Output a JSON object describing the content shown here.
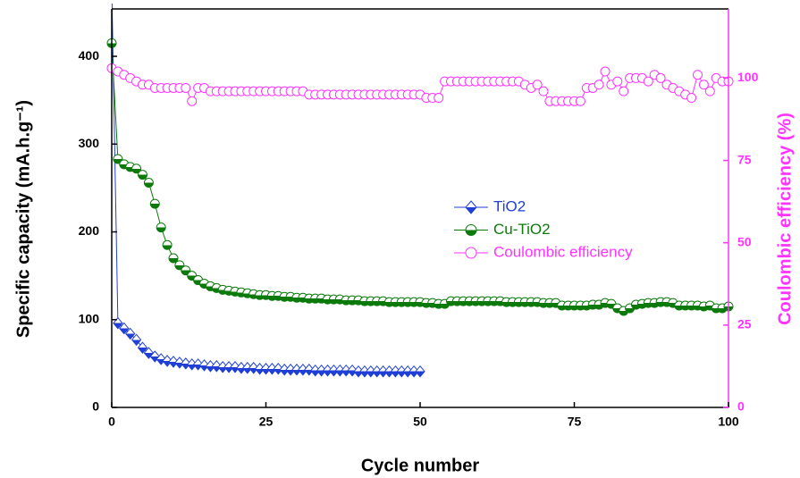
{
  "chart_data": {
    "type": "line",
    "x_label": "Cycle number",
    "y_label": "Specific capacity (mA.h.g⁻¹)",
    "y2_label": "Coulombic efficiency (%)",
    "xlim": [
      0,
      100
    ],
    "xticks": [
      0,
      25,
      50,
      75,
      100
    ],
    "ylim": [
      0,
      454
    ],
    "yticks": [
      0,
      100,
      200,
      300,
      400
    ],
    "y2lim": [
      0,
      121
    ],
    "y2ticks": [
      0,
      25,
      50,
      75,
      100
    ],
    "legend_position": "right",
    "x": [
      0,
      1,
      2,
      3,
      4,
      5,
      6,
      7,
      8,
      9,
      10,
      11,
      12,
      13,
      14,
      15,
      16,
      17,
      18,
      19,
      20,
      21,
      22,
      23,
      24,
      25,
      26,
      27,
      28,
      29,
      30,
      31,
      32,
      33,
      34,
      35,
      36,
      37,
      38,
      39,
      40,
      41,
      42,
      43,
      44,
      45,
      46,
      47,
      48,
      49,
      50,
      51,
      52,
      53,
      54,
      55,
      56,
      57,
      58,
      59,
      60,
      61,
      62,
      63,
      64,
      65,
      66,
      67,
      68,
      69,
      70,
      71,
      72,
      73,
      74,
      75,
      76,
      77,
      78,
      79,
      80,
      81,
      82,
      83,
      84,
      85,
      86,
      87,
      88,
      89,
      90,
      91,
      92,
      93,
      94,
      95,
      96,
      97,
      98,
      99,
      100
    ],
    "series": [
      {
        "name": "TiO2",
        "color": "#1f3fd6",
        "marker": "diamond",
        "axis": "y",
        "values": [
          480,
          96,
          90,
          84,
          77,
          68,
          62,
          58,
          55,
          53,
          52,
          51,
          50,
          49,
          49,
          48,
          47,
          47,
          46,
          46,
          46,
          45,
          45,
          45,
          44,
          44,
          44,
          44,
          43,
          43,
          43,
          43,
          43,
          42,
          42,
          42,
          42,
          42,
          42,
          42,
          41,
          41,
          41,
          41,
          41,
          41,
          41,
          41,
          41,
          41,
          41,
          null,
          null,
          null,
          null,
          null,
          null,
          null,
          null,
          null,
          null,
          null,
          null,
          null,
          null,
          null,
          null,
          null,
          null,
          null,
          null,
          null,
          null,
          null,
          null,
          null,
          null,
          null,
          null,
          null,
          null,
          null,
          null,
          null,
          null,
          null,
          null,
          null,
          null,
          null,
          null,
          null,
          null,
          null,
          null,
          null,
          null,
          null,
          null,
          null,
          null
        ]
      },
      {
        "name": "Cu-TiO2",
        "color": "#0b7a0b",
        "marker": "circle-half",
        "axis": "y",
        "values": [
          415,
          283,
          277,
          274,
          272,
          265,
          256,
          232,
          205,
          185,
          170,
          162,
          156,
          150,
          145,
          141,
          138,
          136,
          134,
          133,
          132,
          131,
          130,
          129,
          128,
          128,
          127,
          127,
          126,
          126,
          125,
          125,
          124,
          124,
          124,
          123,
          123,
          123,
          122,
          122,
          122,
          121,
          121,
          121,
          121,
          120,
          120,
          120,
          120,
          120,
          120,
          119,
          119,
          118,
          118,
          121,
          121,
          121,
          121,
          121,
          121,
          121,
          121,
          121,
          120,
          120,
          120,
          120,
          120,
          120,
          119,
          119,
          119,
          116,
          116,
          116,
          116,
          116,
          117,
          117,
          119,
          118,
          113,
          110,
          113,
          117,
          118,
          119,
          119,
          120,
          120,
          119,
          116,
          116,
          116,
          116,
          115,
          116,
          113,
          113,
          115
        ]
      },
      {
        "name": "Coulombic efficiency",
        "color": "#ff33ff",
        "marker": "circle-open",
        "axis": "y2",
        "values": [
          103,
          102,
          101,
          100,
          99,
          98,
          98,
          97,
          97,
          97,
          97,
          97,
          97,
          93,
          97,
          97,
          96,
          96,
          96,
          96,
          96,
          96,
          96,
          96,
          96,
          96,
          96,
          96,
          96,
          96,
          96,
          96,
          95,
          95,
          95,
          95,
          95,
          95,
          95,
          95,
          95,
          95,
          95,
          95,
          95,
          95,
          95,
          95,
          95,
          95,
          95,
          94,
          94,
          94,
          99,
          99,
          99,
          99,
          99,
          99,
          99,
          99,
          99,
          99,
          99,
          99,
          99,
          98,
          97,
          98,
          96,
          93,
          93,
          93,
          93,
          93,
          93,
          97,
          97,
          98,
          102,
          98,
          99,
          96,
          100,
          100,
          100,
          99,
          101,
          100,
          98,
          97,
          96,
          95,
          94,
          101,
          98,
          96,
          100,
          99,
          99
        ]
      }
    ]
  }
}
